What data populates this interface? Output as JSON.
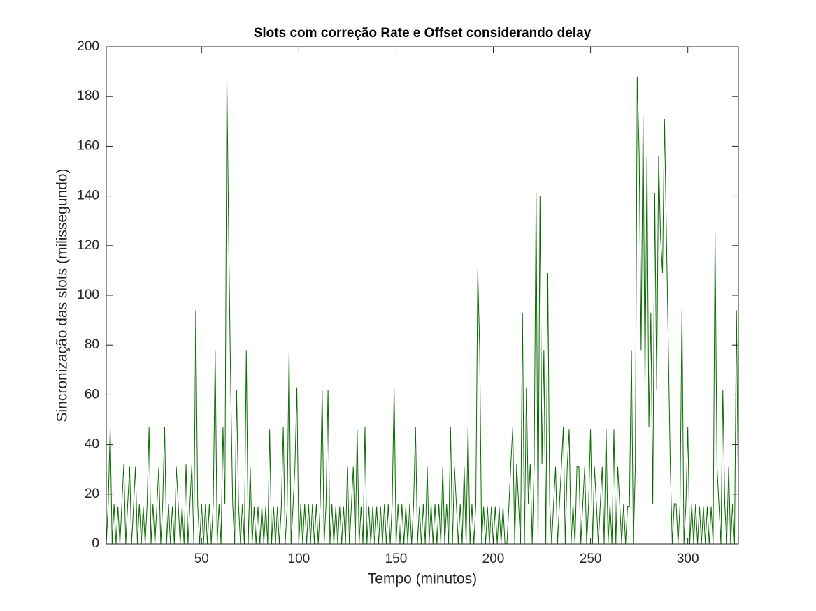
{
  "chart_data": {
    "type": "line",
    "title": "Slots com correção Rate e Offset considerando delay",
    "x_label": "Tempo (minutos)",
    "y_label": "Sincronização das slots (milissegundo)",
    "xlim": [
      1,
      326
    ],
    "ylim": [
      0,
      200
    ],
    "xticks": [
      50,
      100,
      150,
      200,
      250,
      300
    ],
    "yticks": [
      0,
      20,
      40,
      60,
      80,
      100,
      120,
      140,
      160,
      180,
      200
    ],
    "x": [
      1,
      2,
      3,
      4,
      5,
      6,
      7,
      8,
      9,
      10,
      11,
      12,
      13,
      14,
      15,
      16,
      17,
      18,
      19,
      20,
      21,
      22,
      23,
      24,
      25,
      26,
      27,
      28,
      29,
      30,
      31,
      32,
      33,
      34,
      35,
      36,
      37,
      38,
      39,
      40,
      41,
      42,
      43,
      44,
      45,
      46,
      47,
      48,
      49,
      50,
      51,
      52,
      53,
      54,
      55,
      56,
      57,
      58,
      59,
      60,
      61,
      62,
      63,
      64,
      65,
      66,
      67,
      68,
      69,
      70,
      71,
      72,
      73,
      74,
      75,
      76,
      77,
      78,
      79,
      80,
      81,
      82,
      83,
      84,
      85,
      86,
      87,
      88,
      89,
      90,
      91,
      92,
      93,
      94,
      95,
      96,
      97,
      98,
      99,
      100,
      101,
      102,
      103,
      104,
      105,
      106,
      107,
      108,
      109,
      110,
      111,
      112,
      113,
      114,
      115,
      116,
      117,
      118,
      119,
      120,
      121,
      122,
      123,
      124,
      125,
      126,
      127,
      128,
      129,
      130,
      131,
      132,
      133,
      134,
      135,
      136,
      137,
      138,
      139,
      140,
      141,
      142,
      143,
      144,
      145,
      146,
      147,
      148,
      149,
      150,
      151,
      152,
      153,
      154,
      155,
      156,
      157,
      158,
      159,
      160,
      161,
      162,
      163,
      164,
      165,
      166,
      167,
      168,
      169,
      170,
      171,
      172,
      173,
      174,
      175,
      176,
      177,
      178,
      179,
      180,
      181,
      182,
      183,
      184,
      185,
      186,
      187,
      188,
      189,
      190,
      191,
      192,
      193,
      194,
      195,
      196,
      197,
      198,
      199,
      200,
      201,
      202,
      203,
      204,
      205,
      206,
      207,
      208,
      209,
      210,
      211,
      212,
      213,
      214,
      215,
      216,
      217,
      218,
      219,
      220,
      221,
      222,
      223,
      224,
      225,
      226,
      227,
      228,
      229,
      230,
      231,
      232,
      233,
      234,
      235,
      236,
      237,
      238,
      239,
      240,
      241,
      242,
      243,
      244,
      245,
      246,
      247,
      248,
      249,
      250,
      251,
      252,
      253,
      254,
      255,
      256,
      257,
      258,
      259,
      260,
      261,
      262,
      263,
      264,
      265,
      266,
      267,
      268,
      269,
      270,
      271,
      272,
      273,
      274,
      275,
      276,
      277,
      278,
      279,
      280,
      281,
      282,
      283,
      284,
      285,
      286,
      287,
      288,
      289,
      290,
      291,
      292,
      293,
      294,
      295,
      296,
      297,
      298,
      299,
      300,
      301,
      302,
      303,
      304,
      305,
      306,
      307,
      308,
      309,
      310,
      311,
      312,
      313,
      314,
      315,
      316,
      317,
      318,
      319,
      320,
      321,
      322,
      323,
      324,
      325,
      326
    ],
    "series": [
      {
        "color": "#0a6a00",
        "values": [
          0,
          16,
          47,
          0,
          16,
          0,
          15,
          0,
          16,
          32,
          0,
          16,
          31,
          0,
          15,
          31,
          0,
          16,
          0,
          15,
          0,
          16,
          47,
          0,
          16,
          0,
          15,
          31,
          0,
          16,
          47,
          0,
          16,
          0,
          15,
          0,
          31,
          16,
          0,
          15,
          0,
          32,
          0,
          16,
          32,
          0,
          94,
          16,
          0,
          16,
          0,
          16,
          0,
          16,
          0,
          16,
          78,
          0,
          16,
          0,
          47,
          16,
          187,
          120,
          62,
          16,
          0,
          62,
          16,
          0,
          16,
          0,
          78,
          0,
          31,
          0,
          15,
          0,
          15,
          0,
          15,
          0,
          15,
          0,
          46,
          0,
          15,
          0,
          15,
          0,
          15,
          47,
          0,
          15,
          78,
          0,
          15,
          31,
          63,
          0,
          16,
          0,
          16,
          0,
          16,
          0,
          16,
          0,
          16,
          0,
          16,
          62,
          0,
          16,
          62,
          0,
          16,
          0,
          15,
          0,
          15,
          0,
          15,
          0,
          31,
          0,
          15,
          31,
          0,
          46,
          0,
          15,
          0,
          47,
          0,
          15,
          0,
          15,
          0,
          15,
          0,
          15,
          0,
          16,
          0,
          16,
          0,
          16,
          63,
          0,
          16,
          0,
          16,
          0,
          15,
          0,
          16,
          0,
          16,
          47,
          0,
          15,
          0,
          16,
          0,
          31,
          0,
          16,
          0,
          16,
          0,
          16,
          0,
          31,
          0,
          16,
          0,
          47,
          0,
          31,
          16,
          0,
          16,
          0,
          31,
          0,
          47,
          0,
          16,
          0,
          16,
          110,
          78,
          0,
          15,
          0,
          15,
          0,
          15,
          0,
          15,
          0,
          15,
          0,
          15,
          0,
          0,
          15,
          32,
          47,
          0,
          32,
          16,
          0,
          93,
          0,
          63,
          16,
          32,
          0,
          32,
          141,
          0,
          140,
          32,
          78,
          0,
          109,
          16,
          0,
          16,
          31,
          0,
          16,
          31,
          47,
          0,
          31,
          46,
          0,
          16,
          0,
          31,
          31,
          0,
          16,
          31,
          0,
          16,
          46,
          0,
          31,
          16,
          0,
          16,
          31,
          0,
          46,
          0,
          16,
          0,
          46,
          0,
          31,
          16,
          0,
          16,
          0,
          15,
          15,
          78,
          0,
          31,
          188,
          157,
          78,
          172,
          63,
          156,
          47,
          93,
          16,
          141,
          62,
          156,
          123,
          109,
          171,
          125,
          78,
          31,
          0,
          16,
          16,
          0,
          16,
          94,
          0,
          16,
          47,
          0,
          16,
          0,
          16,
          0,
          15,
          0,
          15,
          0,
          15,
          0,
          15,
          0,
          125,
          31,
          16,
          0,
          62,
          16,
          0,
          31,
          0,
          16,
          0,
          94,
          16
        ]
      }
    ]
  }
}
